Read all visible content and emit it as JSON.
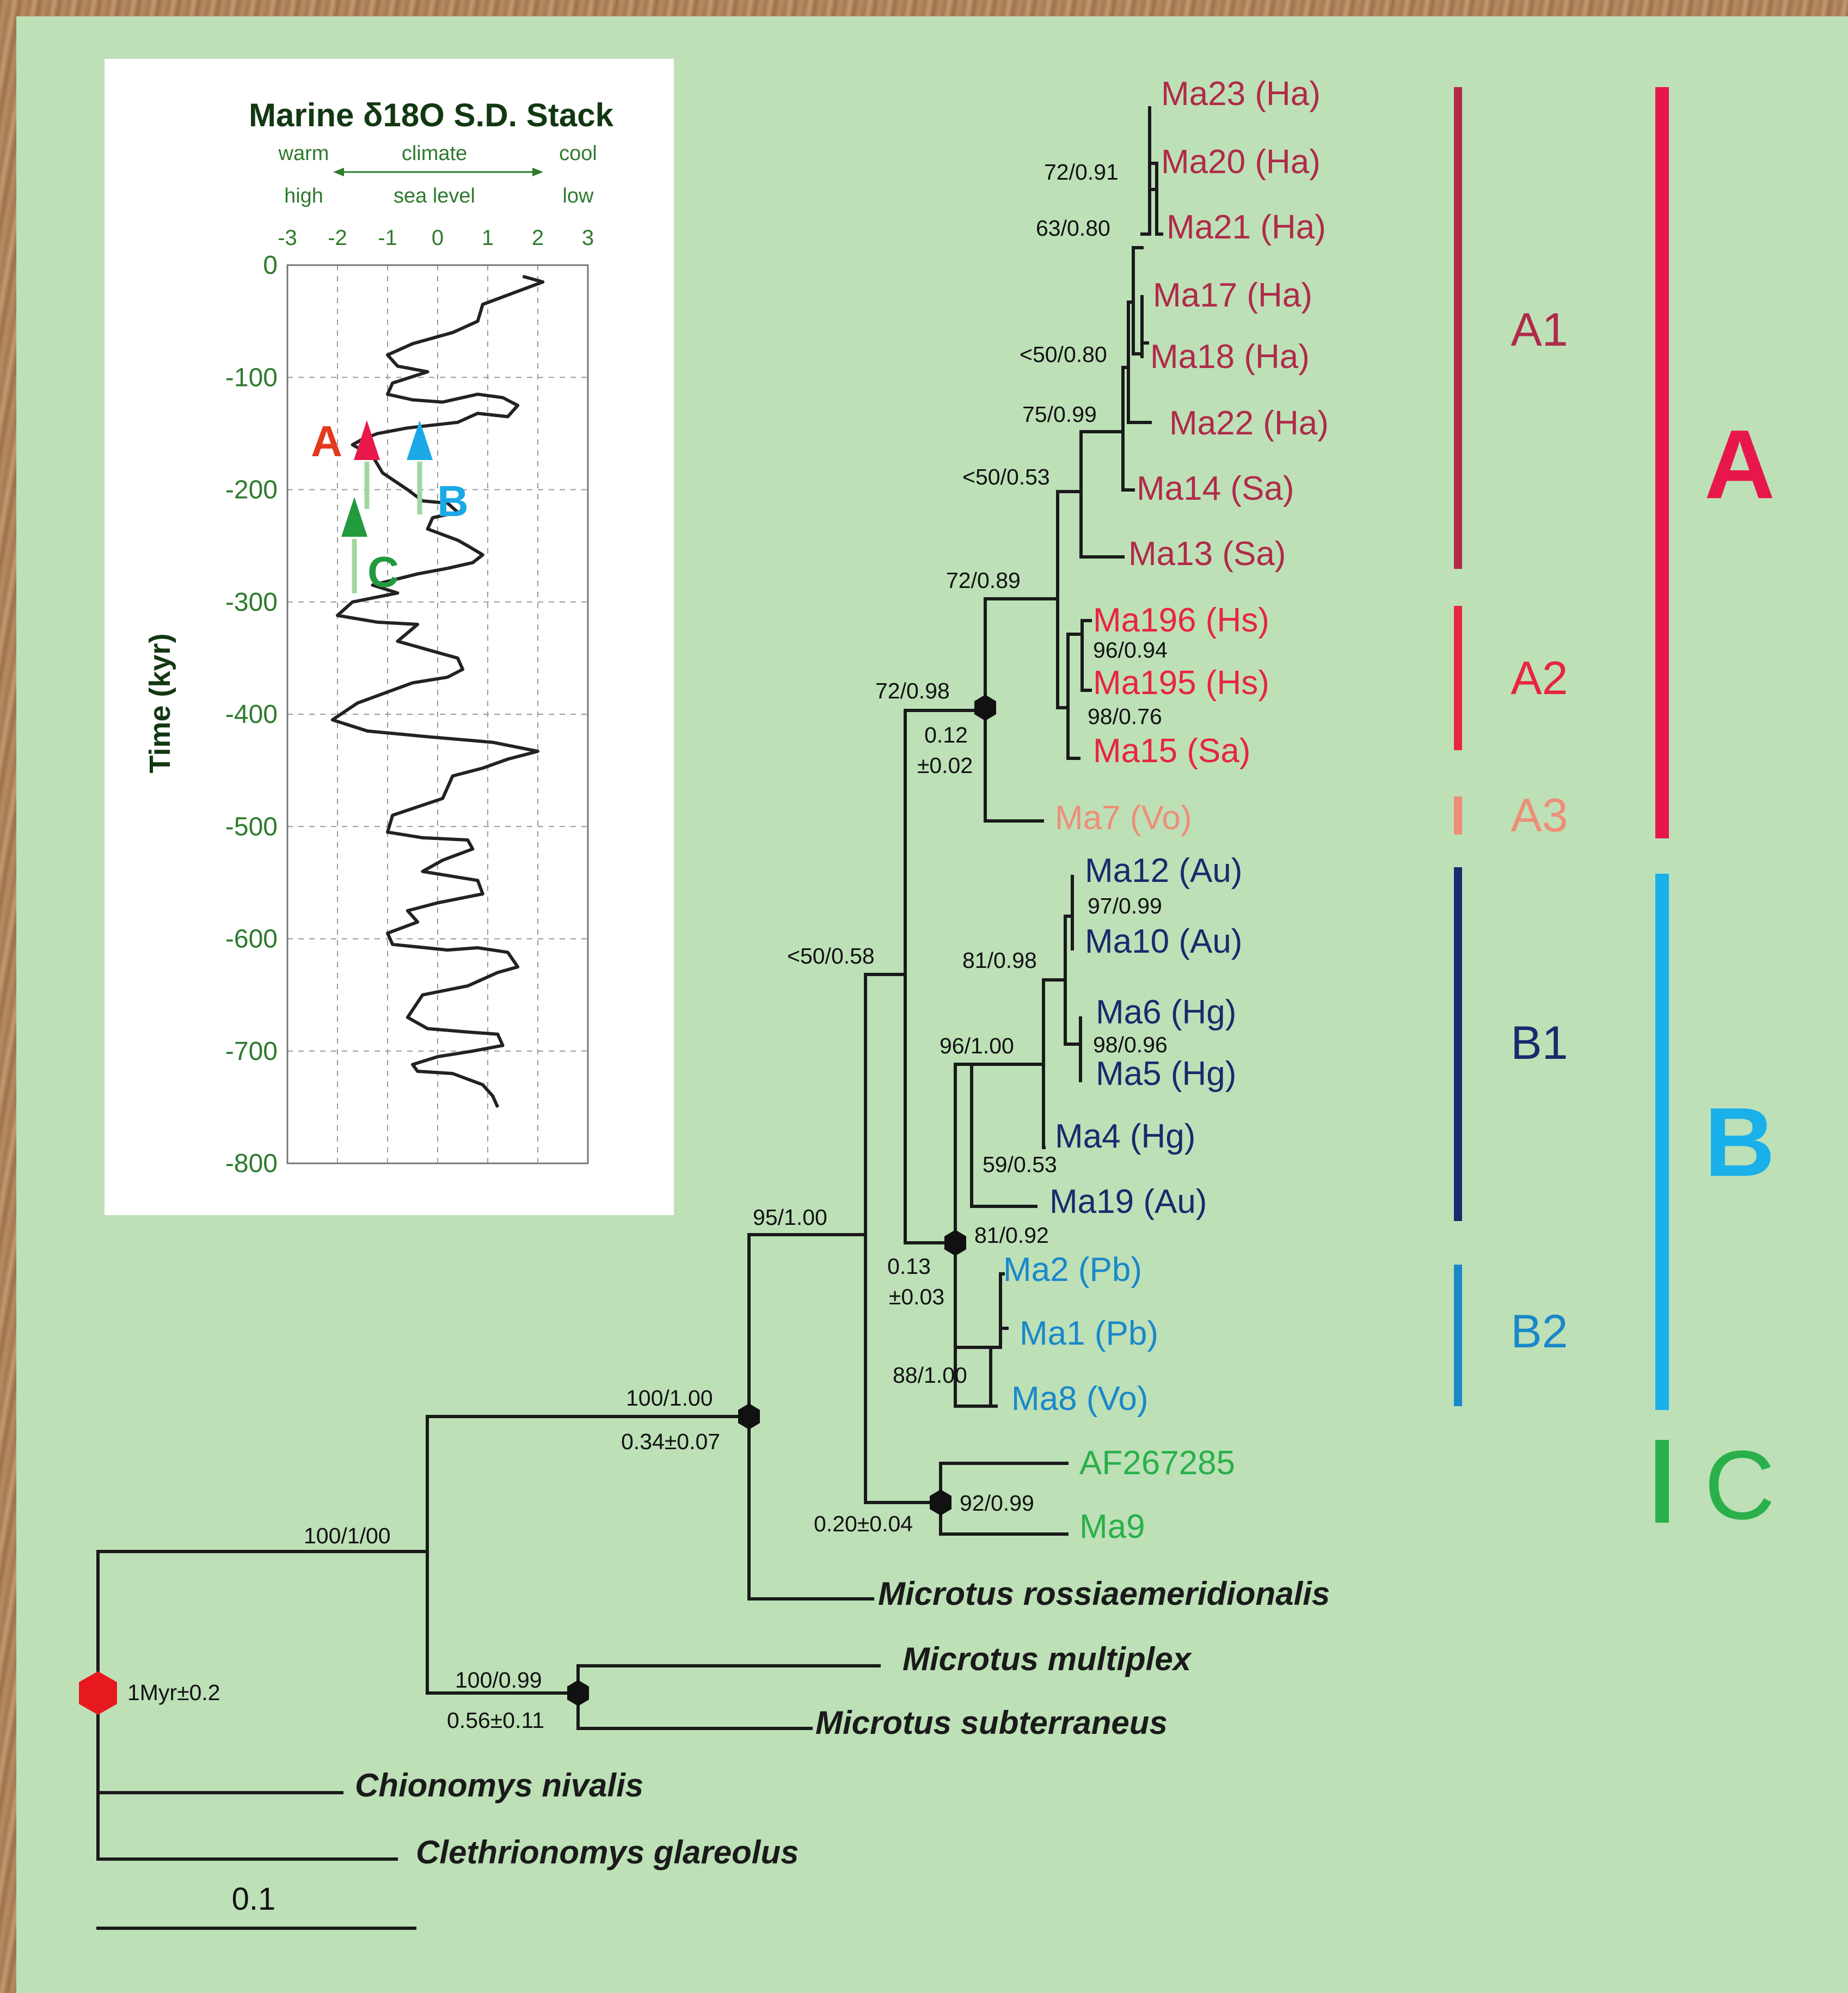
{
  "colors": {
    "panel": "#bde0b7",
    "frame": "#a57a52",
    "cladeA1": "#b02a4a",
    "cladeA2": "#e8253f",
    "cladeA3": "#ef8e78",
    "cladeB1": "#1a2a6c",
    "cladeB2": "#1a88c9",
    "cladeC": "#2ab04a",
    "groupA": "#e8174b",
    "groupB": "#1ab0ea",
    "node_marker": "#111111",
    "root_marker": "#e8191e"
  },
  "inset": {
    "title": "Marine δ18O S.D. Stack",
    "warm": "warm",
    "climate": "climate",
    "cool": "cool",
    "high": "high",
    "sea_level": "sea level",
    "low": "low",
    "x_ticks": [
      "-3",
      "-2",
      "-1",
      "0",
      "1",
      "2",
      "3"
    ],
    "y_ticks": [
      "0",
      "-100",
      "-200",
      "-300",
      "-400",
      "-500",
      "-600",
      "-700",
      "-800"
    ],
    "y_label": "Time (kyr)",
    "markers": {
      "A": "A",
      "B": "B",
      "C": "C"
    }
  },
  "chart_data": {
    "type": "line",
    "title": "Marine δ18O S.D. Stack",
    "ylabel": "Time (kyr)",
    "xlim": [
      -3,
      3
    ],
    "ylim": [
      -800,
      0
    ],
    "grid": true,
    "series": [
      {
        "points": [
          [
            1.7,
            -10
          ],
          [
            2.1,
            -15
          ],
          [
            1.5,
            -25
          ],
          [
            0.9,
            -35
          ],
          [
            0.8,
            -50
          ],
          [
            0.3,
            -60
          ],
          [
            -0.5,
            -70
          ],
          [
            -1.0,
            -80
          ],
          [
            -0.8,
            -90
          ],
          [
            -0.2,
            -95
          ],
          [
            -0.9,
            -105
          ],
          [
            -1.0,
            -115
          ],
          [
            -0.5,
            -120
          ],
          [
            0.1,
            -122
          ],
          [
            0.8,
            -115
          ],
          [
            1.3,
            -118
          ],
          [
            1.6,
            -125
          ],
          [
            1.4,
            -135
          ],
          [
            0.8,
            -132
          ],
          [
            0.4,
            -140
          ],
          [
            -0.6,
            -145
          ],
          [
            -1.2,
            -150
          ],
          [
            -1.5,
            -155
          ],
          [
            -1.7,
            -160
          ],
          [
            -1.3,
            -170
          ],
          [
            -1.1,
            -185
          ],
          [
            -0.6,
            -200
          ],
          [
            -0.3,
            -210
          ],
          [
            0.2,
            -212
          ],
          [
            0.4,
            -220
          ],
          [
            -0.1,
            -225
          ],
          [
            -0.2,
            -235
          ],
          [
            0.4,
            -245
          ],
          [
            0.6,
            -250
          ],
          [
            0.9,
            -258
          ],
          [
            0.7,
            -265
          ],
          [
            0.2,
            -270
          ],
          [
            -0.4,
            -275
          ],
          [
            -1.3,
            -285
          ],
          [
            -0.8,
            -292
          ],
          [
            -1.7,
            -300
          ],
          [
            -2.0,
            -312
          ],
          [
            -1.2,
            -318
          ],
          [
            -0.4,
            -320
          ],
          [
            -0.8,
            -335
          ],
          [
            0.0,
            -345
          ],
          [
            0.4,
            -350
          ],
          [
            0.5,
            -360
          ],
          [
            0.2,
            -367
          ],
          [
            -0.5,
            -372
          ],
          [
            -1.6,
            -390
          ],
          [
            -2.1,
            -405
          ],
          [
            -1.4,
            -415
          ],
          [
            -0.2,
            -420
          ],
          [
            1.1,
            -425
          ],
          [
            2.0,
            -433
          ],
          [
            1.4,
            -440
          ],
          [
            0.9,
            -448
          ],
          [
            0.3,
            -455
          ],
          [
            0.1,
            -475
          ],
          [
            -0.9,
            -490
          ],
          [
            -1.0,
            -505
          ],
          [
            -0.3,
            -510
          ],
          [
            0.6,
            -512
          ],
          [
            0.7,
            -520
          ],
          [
            0.1,
            -530
          ],
          [
            -0.3,
            -540
          ],
          [
            0.8,
            -548
          ],
          [
            0.9,
            -560
          ],
          [
            0.0,
            -568
          ],
          [
            -0.6,
            -575
          ],
          [
            -0.4,
            -585
          ],
          [
            -1.0,
            -595
          ],
          [
            -0.9,
            -605
          ],
          [
            0.2,
            -610
          ],
          [
            0.8,
            -608
          ],
          [
            1.4,
            -612
          ],
          [
            1.6,
            -625
          ],
          [
            1.2,
            -630
          ],
          [
            0.6,
            -642
          ],
          [
            -0.3,
            -650
          ],
          [
            -0.6,
            -670
          ],
          [
            -0.2,
            -680
          ],
          [
            0.6,
            -683
          ],
          [
            1.2,
            -685
          ],
          [
            1.3,
            -695
          ],
          [
            0.7,
            -700
          ],
          [
            0.0,
            -705
          ],
          [
            -0.5,
            -712
          ],
          [
            -0.4,
            -718
          ],
          [
            0.3,
            -720
          ],
          [
            0.9,
            -730
          ],
          [
            1.1,
            -740
          ],
          [
            1.2,
            -750
          ]
        ]
      }
    ]
  },
  "tree": {
    "leaves": {
      "ma23": "Ma23 (Ha)",
      "ma20": "Ma20 (Ha)",
      "ma21": "Ma21 (Ha)",
      "ma17": "Ma17 (Ha)",
      "ma18": "Ma18 (Ha)",
      "ma22": "Ma22 (Ha)",
      "ma14": "Ma14 (Sa)",
      "ma13": "Ma13 (Sa)",
      "ma196": "Ma196 (Hs)",
      "ma195": "Ma195 (Hs)",
      "ma15": "Ma15 (Sa)",
      "ma7": "Ma7 (Vo)",
      "ma12": "Ma12 (Au)",
      "ma10": "Ma10 (Au)",
      "ma6": "Ma6 (Hg)",
      "ma5": "Ma5 (Hg)",
      "ma4": "Ma4 (Hg)",
      "ma19": "Ma19 (Au)",
      "ma2": "Ma2 (Pb)",
      "ma1": "Ma1 (Pb)",
      "ma8": "Ma8 (Vo)",
      "af267285": "AF267285",
      "ma9": "Ma9"
    },
    "outgroups": {
      "rossiae": "Microtus rossiaemeridionalis",
      "multiplex": "Microtus multiplex",
      "subterraneus": "Microtus subterraneus",
      "nivalis": "Chionomys nivalis",
      "glareolus": "Clethrionomys glareolus"
    },
    "support": {
      "s72_091": "72/0.91",
      "s63_080": "63/0.80",
      "s50_080": "<50/0.80",
      "s75_099": "75/0.99",
      "s50_053": "<50/0.53",
      "s72_089": "72/0.89",
      "s96_094": "96/0.94",
      "s98_076": "98/0.76",
      "s72_098": "72/0.98",
      "s97_099": "97/0.99",
      "s81_098": "81/0.98",
      "s98_096": "98/0.96",
      "s96_100": "96/1.00",
      "s59_053": "59/0.53",
      "s81_092": "81/0.92",
      "s50_058": "<50/0.58",
      "s95_100": "95/1.00",
      "s88_100": "88/1.00",
      "s100_100": "100/1.00",
      "s92_099": "92/0.99",
      "s100_1_00": "100/1/00",
      "s100_099": "100/0.99"
    },
    "ages": {
      "a012_a": "0.12",
      "a012_b": "±0.02",
      "a013_a": "0.13",
      "a013_b": "±0.03",
      "a034": "0.34±0.07",
      "a020": "0.20±0.04",
      "a056": "0.56±0.11",
      "root": "1Myr±0.2"
    },
    "scale": "0.1"
  },
  "groups": {
    "A1": "A1",
    "A2": "A2",
    "A3": "A3",
    "B1": "B1",
    "B2": "B2",
    "A": "A",
    "B": "B",
    "C": "C"
  }
}
